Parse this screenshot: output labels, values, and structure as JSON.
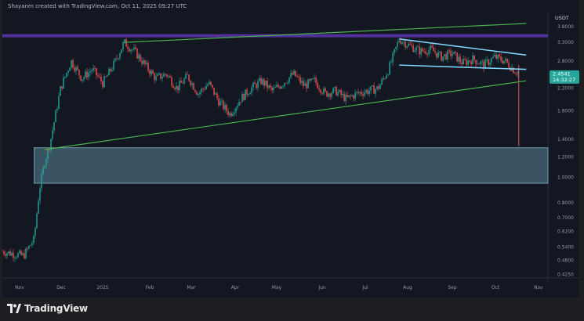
{
  "header": {
    "text": "Shayanm created with TradingView.com, Oct 11, 2025 09:27 UTC"
  },
  "brand": {
    "name": "TradingView"
  },
  "colors": {
    "background": "#131722",
    "up": "#26a69a",
    "down": "#ef5350",
    "trendline": "#4caf50",
    "resistance": "#5e35b1",
    "flag": "#7fd3f7",
    "zone": "#4a6a79",
    "price_badge": "#26a69a"
  },
  "chart_data": {
    "type": "candlestick",
    "currency": "USDT",
    "y_axis": {
      "scale": "log",
      "ylim": [
        0.42,
        3.9
      ],
      "ticks": [
        "3.8000",
        "3.3000",
        "2.8000",
        "2.2000",
        "1.8000",
        "1.4000",
        "1.2000",
        "1.0000",
        "0.8000",
        "0.7000",
        "0.6200",
        "0.5400",
        "0.4800",
        "0.4250"
      ]
    },
    "x_axis": {
      "ticks": [
        "Nov",
        "Dec",
        "2025",
        "Feb",
        "Mar",
        "Apr",
        "May",
        "Jun",
        "Jul",
        "Aug",
        "Sep",
        "Oct",
        "Nov"
      ]
    },
    "grid": false,
    "legend": "none",
    "last_price": {
      "price": "2.4541",
      "countdown": "14:32:27",
      "value": 2.4541
    },
    "price_path": [
      [
        0,
        0.52
      ],
      [
        4,
        0.5
      ],
      [
        6,
        0.58
      ],
      [
        7,
        0.9
      ],
      [
        8,
        1.15
      ],
      [
        9,
        1.35
      ],
      [
        11,
        2.2
      ],
      [
        13,
        2.8
      ],
      [
        15,
        2.4
      ],
      [
        17,
        2.6
      ],
      [
        19,
        2.3
      ],
      [
        21,
        2.7
      ],
      [
        23,
        3.3
      ],
      [
        25,
        3.05
      ],
      [
        27,
        2.7
      ],
      [
        29,
        2.4
      ],
      [
        31,
        2.5
      ],
      [
        33,
        2.2
      ],
      [
        35,
        2.45
      ],
      [
        37,
        2.1
      ],
      [
        39,
        2.3
      ],
      [
        41,
        1.95
      ],
      [
        43,
        1.75
      ],
      [
        45,
        2.0
      ],
      [
        47,
        2.2
      ],
      [
        49,
        2.35
      ],
      [
        51,
        2.15
      ],
      [
        53,
        2.3
      ],
      [
        55,
        2.5
      ],
      [
        57,
        2.25
      ],
      [
        59,
        2.35
      ],
      [
        61,
        2.1
      ],
      [
        63,
        2.15
      ],
      [
        65,
        2.0
      ],
      [
        67,
        2.1
      ],
      [
        69,
        2.15
      ],
      [
        71,
        2.2
      ],
      [
        73,
        2.6
      ],
      [
        75,
        3.4
      ],
      [
        77,
        3.2
      ],
      [
        79,
        3.05
      ],
      [
        81,
        3.1
      ],
      [
        83,
        2.9
      ],
      [
        85,
        3.0
      ],
      [
        87,
        2.75
      ],
      [
        89,
        2.85
      ],
      [
        91,
        2.7
      ],
      [
        93,
        2.9
      ],
      [
        95,
        2.8
      ],
      [
        97,
        2.55
      ]
    ],
    "drawings": {
      "resistance_level": 3.5,
      "upper_trendline": [
        [
          23,
          3.3
        ],
        [
          99,
          3.9
        ]
      ],
      "lower_trendline": [
        [
          8,
          1.28
        ],
        [
          99,
          2.35
        ]
      ],
      "flag_upper": [
        [
          75,
          3.4
        ],
        [
          99,
          2.95
        ]
      ],
      "flag_lower": [
        [
          75,
          2.7
        ],
        [
          99,
          2.6
        ]
      ],
      "demand_zone": [
        0.95,
        1.3
      ],
      "wick_low": 1.32
    }
  }
}
